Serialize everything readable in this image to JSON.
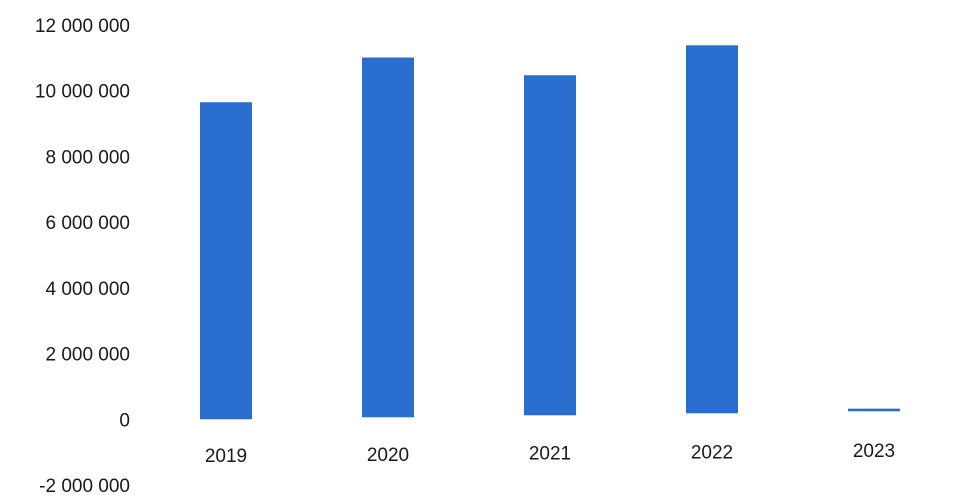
{
  "chart_data": {
    "type": "bar",
    "title": "",
    "xlabel": "",
    "ylabel": "",
    "categories": [
      "2019",
      "2020",
      "2021",
      "2022",
      "2023"
    ],
    "values": [
      9650000,
      10950000,
      10350000,
      11200000,
      80000
    ],
    "ylim": [
      -2000000,
      12000000
    ],
    "yticks": [
      12000000,
      10000000,
      8000000,
      6000000,
      4000000,
      2000000,
      0,
      -2000000
    ],
    "ytick_labels": [
      "12 000 000",
      "10 000 000",
      "8 000 000",
      "6 000 000",
      "4 000 000",
      "2 000 000",
      "0",
      "-2 000 000"
    ],
    "grid": false,
    "legend": "none",
    "bar_color": "#2a6fd0"
  }
}
